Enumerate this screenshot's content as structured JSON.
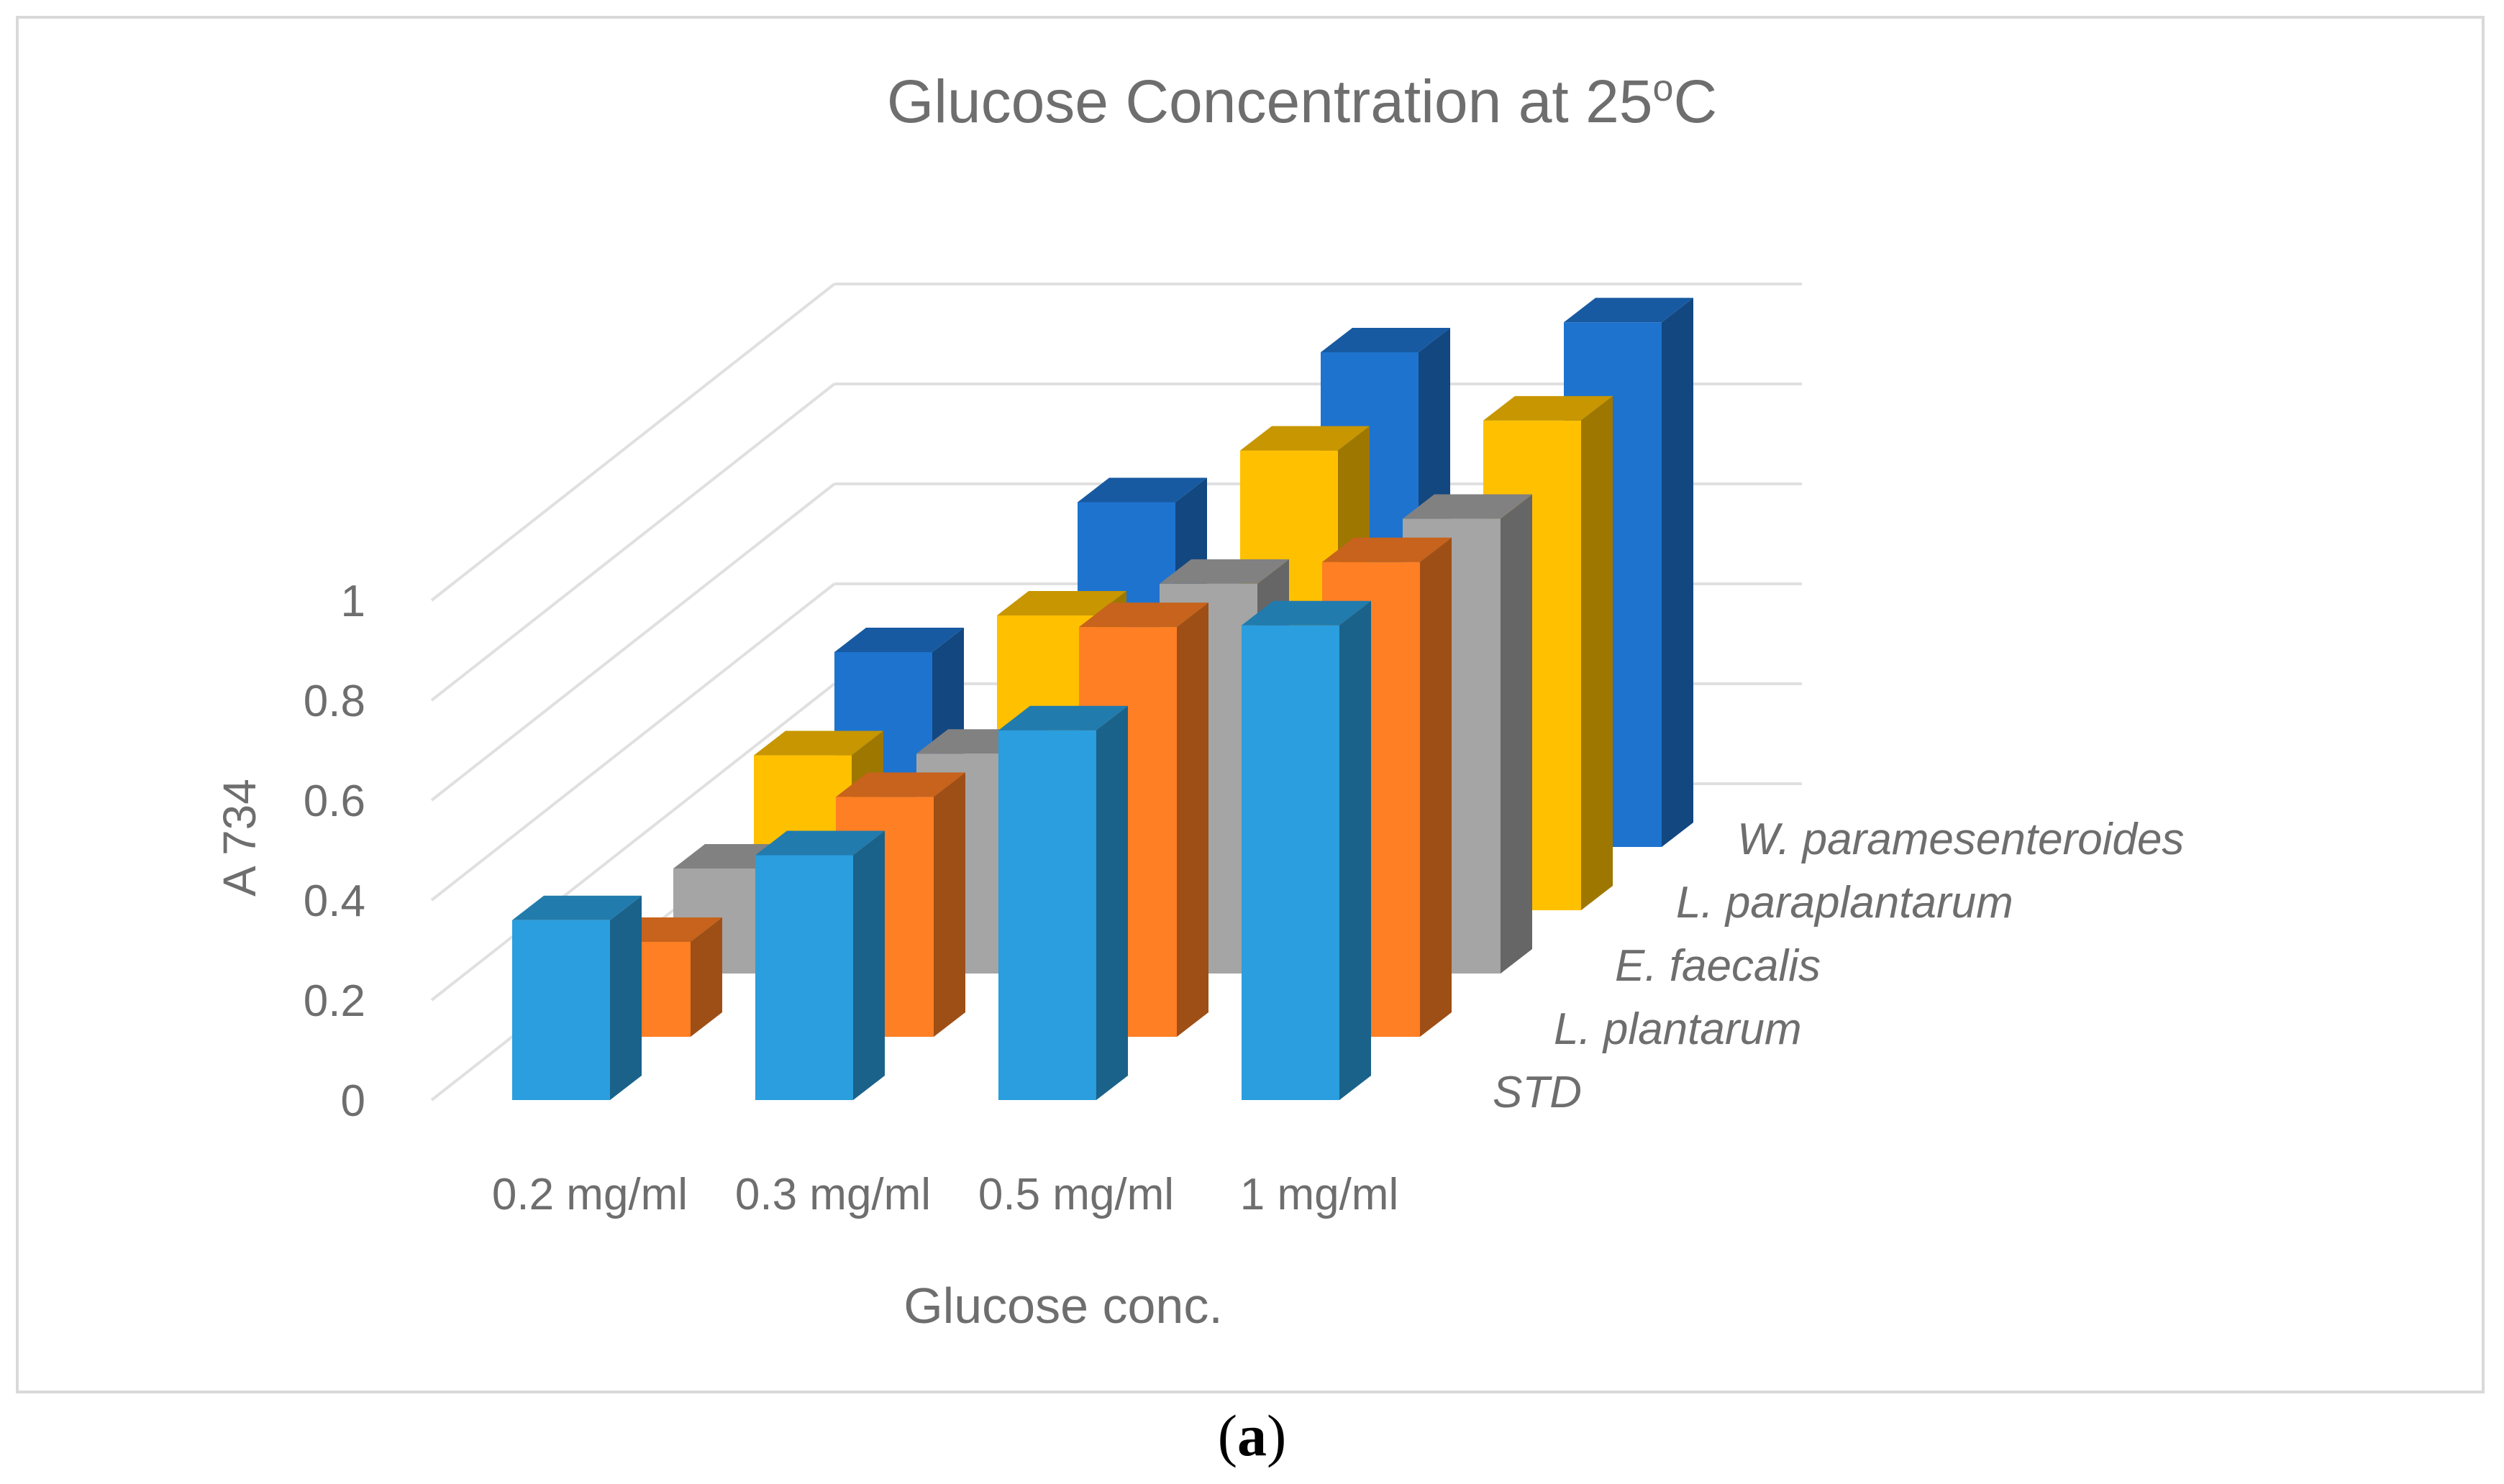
{
  "chart_data": {
    "type": "bar",
    "title_main": "Glucose Concentration at 25",
    "title_sup": "o",
    "title_end": "C",
    "xlabel": "Glucose conc.",
    "ylabel": "A 734",
    "ylim": [
      0,
      1
    ],
    "yticks": [
      "0",
      "0.2",
      "0.4",
      "0.6",
      "0.8",
      "1"
    ],
    "categories": [
      "0.2 mg/ml",
      "0.3 mg/ml",
      "0.5 mg/ml",
      "1 mg/ml"
    ],
    "series": [
      {
        "name": "STD",
        "color": "#2a9ede",
        "values": [
          0.36,
          0.49,
          0.74,
          0.95
        ]
      },
      {
        "name": "L. plantarum",
        "color": "#ff7f24",
        "values": [
          0.19,
          0.48,
          0.82,
          0.95
        ]
      },
      {
        "name": "E. faecalis",
        "color": "#a5a5a5",
        "values": [
          0.21,
          0.44,
          0.78,
          0.91
        ]
      },
      {
        "name": "L. paraplantarum",
        "color": "#ffc000",
        "values": [
          0.31,
          0.59,
          0.92,
          0.98
        ]
      },
      {
        "name": "W. paramesenteroides",
        "color": "#1e73cf",
        "values": [
          0.39,
          0.69,
          0.99,
          1.05
        ]
      }
    ]
  },
  "caption": {
    "open": "(",
    "label": "a",
    "close": ")"
  }
}
